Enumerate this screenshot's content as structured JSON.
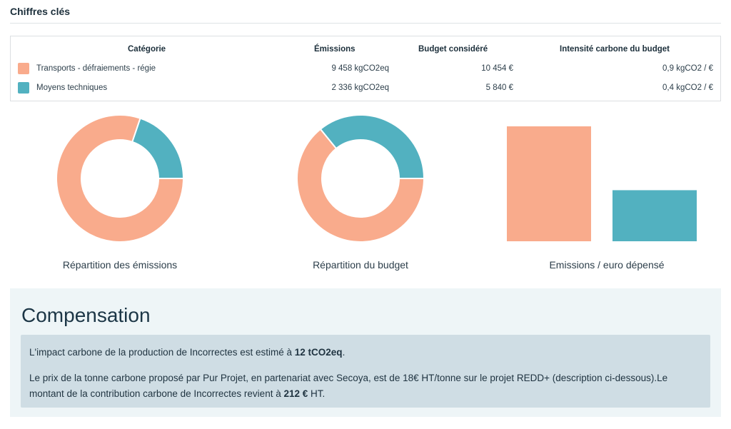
{
  "section": {
    "title": "Chiffres clés"
  },
  "table": {
    "headers": {
      "category": "Catégorie",
      "emissions": "Émissions",
      "budget": "Budget considéré",
      "intensity": "Intensité carbone du budget"
    },
    "rows": [
      {
        "category": "Transports - défraiements - régie",
        "emissions": "9 458 kgCO2eq",
        "budget": "10 454 €",
        "intensity": "0,9 kgCO2 / €",
        "color": "#f9ab8c"
      },
      {
        "category": "Moyens techniques",
        "emissions": "2 336 kgCO2eq",
        "budget": "5 840 €",
        "intensity": "0,4 kgCO2 / €",
        "color": "#52b1c0"
      }
    ]
  },
  "chart_data": [
    {
      "type": "pie",
      "title": "Répartition des émissions",
      "categories": [
        "Transports - défraiements - régie",
        "Moyens techniques"
      ],
      "values": [
        9458,
        2336
      ],
      "colors": [
        "#f9ab8c",
        "#52b1c0"
      ]
    },
    {
      "type": "pie",
      "title": "Répartition du budget",
      "categories": [
        "Transports - défraiements - régie",
        "Moyens techniques"
      ],
      "values": [
        10454,
        5840
      ],
      "colors": [
        "#f9ab8c",
        "#52b1c0"
      ]
    },
    {
      "type": "bar",
      "title": "Emissions / euro dépensé",
      "categories": [
        "Transports - défraiements - régie",
        "Moyens techniques"
      ],
      "values": [
        0.9,
        0.4
      ],
      "colors": [
        "#f9ab8c",
        "#52b1c0"
      ],
      "ylim": [
        0,
        0.9
      ]
    }
  ],
  "compensation": {
    "title": "Compensation",
    "p1_pre": "L'impact carbone de la production de Incorrectes est estimé à ",
    "p1_bold": "12 tCO2eq",
    "p1_post": ".",
    "p2_pre": "Le prix de la tonne carbone proposé par Pur Projet, en partenariat avec Secoya, est de 18€ HT/tonne sur le projet REDD+ (description ci-dessous).Le montant de la contribution carbone de Incorrectes revient à ",
    "p2_bold": "212 €",
    "p2_post": " HT."
  }
}
